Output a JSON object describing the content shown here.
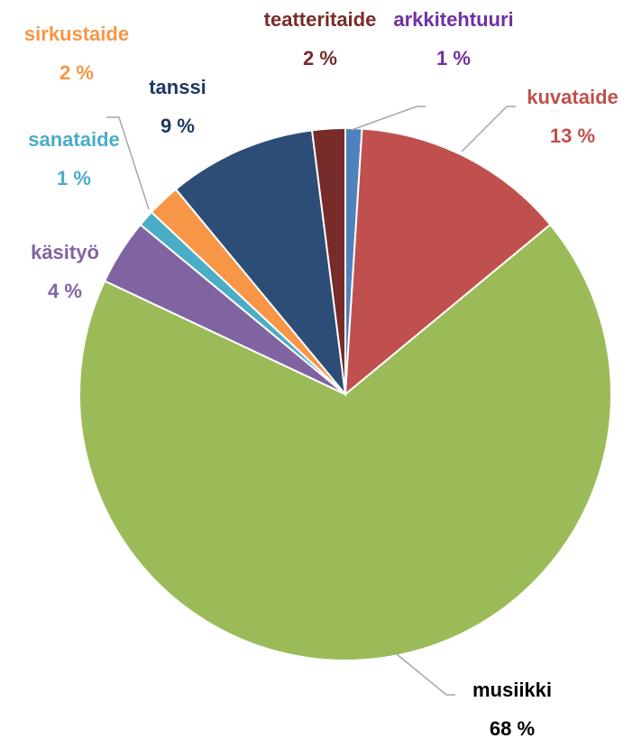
{
  "chart_data": {
    "type": "pie",
    "categories": [
      "arkkitehtuuri",
      "kuvataide",
      "musiikki",
      "käsityö",
      "sanataide",
      "sirkustaide",
      "tanssi",
      "teatteritaide"
    ],
    "values": [
      1,
      13,
      68,
      4,
      1,
      2,
      9,
      2
    ],
    "value_labels": [
      "1 %",
      "13 %",
      "68 %",
      "4 %",
      "1 %",
      "2 %",
      "9 %",
      "2 %"
    ],
    "colors": [
      "#4f81bd",
      "#c0504d",
      "#9bbb59",
      "#8064a2",
      "#4bacc6",
      "#f79646",
      "#2c4d75",
      "#772c2a"
    ],
    "label_colors": [
      "#7030a0",
      "#c0504d",
      "#000000",
      "#8064a2",
      "#4bacc6",
      "#f79646",
      "#1f3864",
      "#772c2a"
    ]
  }
}
